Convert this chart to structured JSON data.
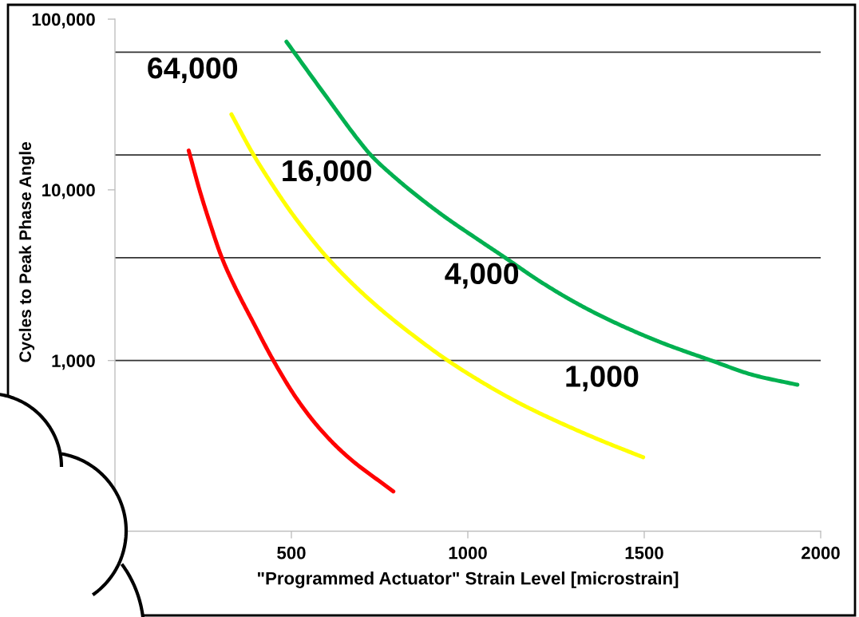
{
  "chart_data": {
    "type": "line",
    "xlabel": "\"Programmed Actuator\" Strain Level [microstrain]",
    "ylabel": "Cycles to Peak Phase Angle",
    "log": "y",
    "xlim": [
      0,
      2000
    ],
    "ylim": [
      100,
      100000
    ],
    "xticks": [
      500,
      1000,
      1500,
      2000
    ],
    "yticks": [
      {
        "value": 1000,
        "label": "1,000"
      },
      {
        "value": 10000,
        "label": "10,000"
      },
      {
        "value": 100000,
        "label": "100,000"
      }
    ],
    "line_style": "solid",
    "series": [
      {
        "color": "#ff0000",
        "x": [
          209,
          240,
          270,
          303,
          340,
          390,
          449,
          516,
          579,
          656,
          789
        ],
        "values": [
          17000,
          9940,
          6300,
          4000,
          2700,
          1700,
          1000,
          594,
          402,
          277,
          171
        ]
      },
      {
        "color": "#ffff00",
        "x": [
          330,
          393,
          450,
          500,
          550,
          602,
          680,
          760,
          850,
          943,
          1050,
          1150,
          1250,
          1370,
          1497
        ],
        "values": [
          27700,
          16000,
          10400,
          7350,
          5380,
          4000,
          2730,
          1940,
          1380,
          1000,
          726,
          557,
          443,
          345,
          271
        ]
      },
      {
        "color": "#00b050",
        "x": [
          486,
          611,
          688,
          725,
          800,
          871,
          941,
          1028,
          1106,
          1202,
          1289,
          1376,
          1463,
          1550,
          1690,
          1811,
          1934
        ],
        "values": [
          73800,
          32500,
          19800,
          16000,
          11500,
          8730,
          6800,
          5130,
          4000,
          2930,
          2280,
          1830,
          1510,
          1270,
          1000,
          820,
          721
        ]
      }
    ],
    "ref_lines": [
      {
        "axis": "y",
        "value": 64000,
        "color": "#333333"
      },
      {
        "axis": "y",
        "value": 16000,
        "color": "#333333"
      },
      {
        "axis": "y",
        "value": 4000,
        "color": "#333333"
      },
      {
        "axis": "y",
        "value": 1000,
        "color": "#333333"
      }
    ],
    "annotations": [
      {
        "text": "64,000",
        "x": 220,
        "y": 64000
      },
      {
        "text": "16,000",
        "x": 600,
        "y": 16000
      },
      {
        "text": "4,000",
        "x": 1040,
        "y": 4000
      },
      {
        "text": "1,000",
        "x": 1380,
        "y": 1000
      }
    ]
  }
}
